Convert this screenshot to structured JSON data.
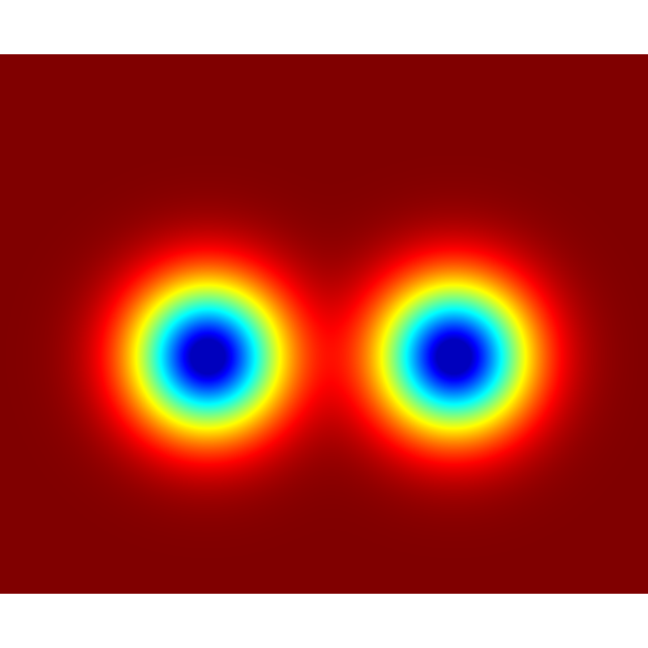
{
  "chart_data": {
    "type": "heatmap",
    "title": "",
    "xlabel": "",
    "ylabel": "",
    "colormap": "jet",
    "grid": false,
    "legend": "none",
    "value_range": [
      0,
      1
    ],
    "background_value": 1,
    "features": [
      {
        "name": "left-minimum",
        "cx": 0.32,
        "cy": 0.56,
        "depth": 1.0
      },
      {
        "name": "right-minimum",
        "cx": 0.7,
        "cy": 0.56,
        "depth": 1.0
      }
    ]
  },
  "colors": {
    "page_background": "#ffffff",
    "field_background": "#7f0000",
    "minimum_core": "#00008f"
  }
}
